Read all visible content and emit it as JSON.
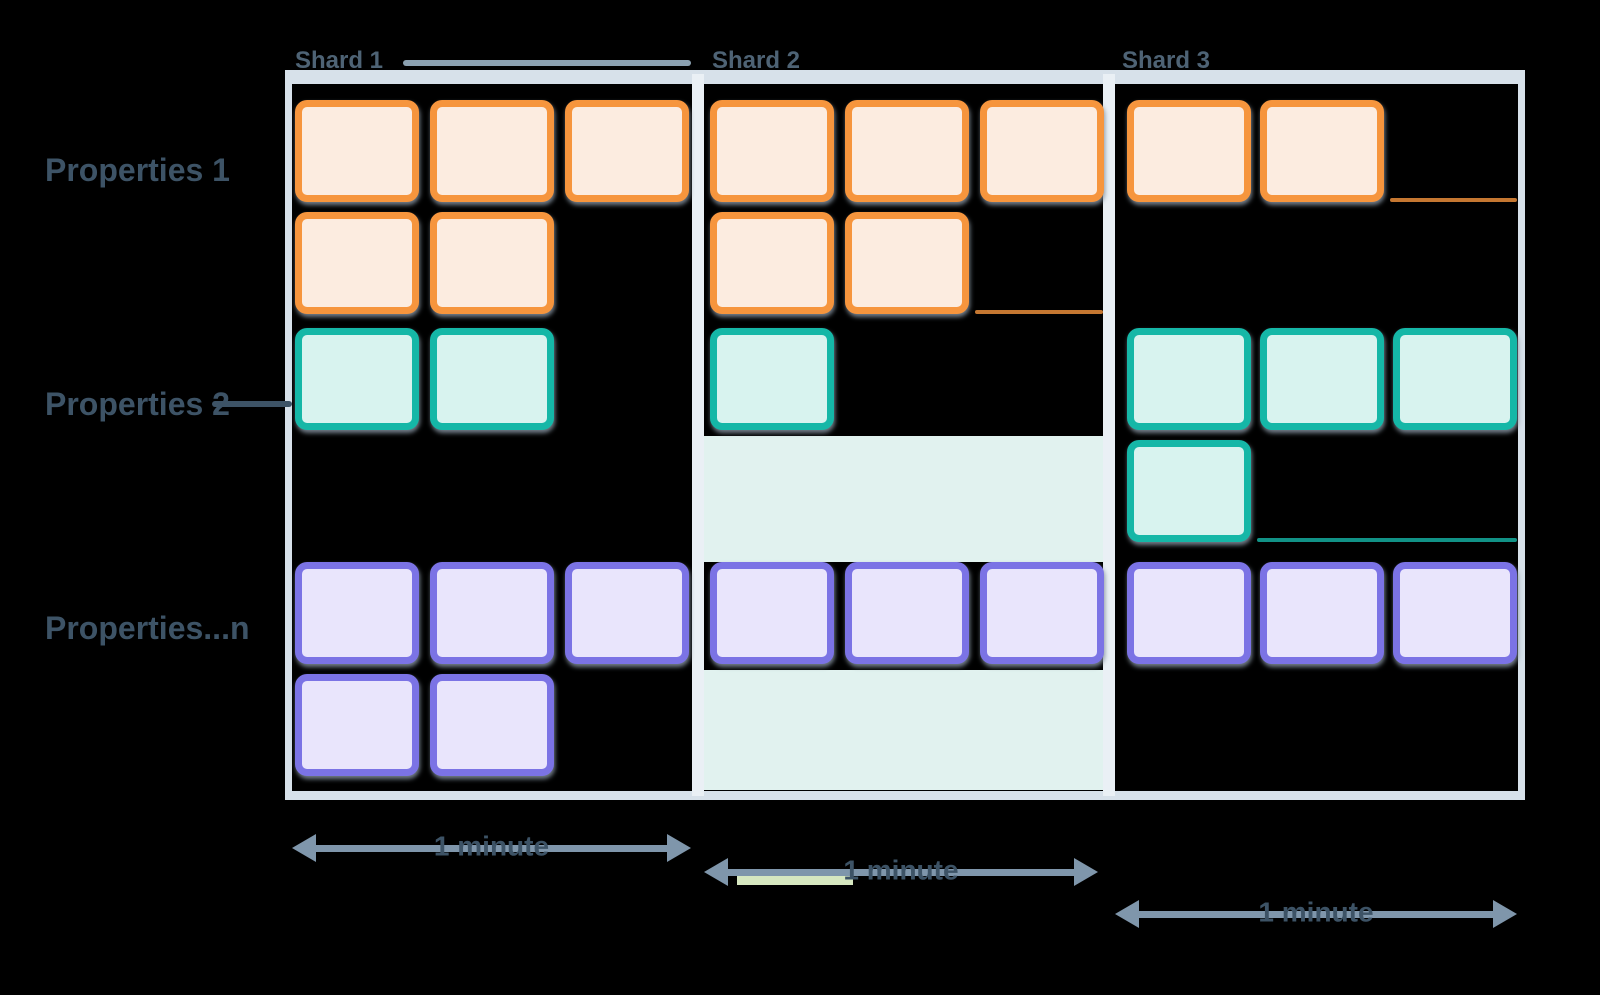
{
  "colors": {
    "background": "#000000",
    "frame": "#d7e1ea",
    "separator": "#eaf0f5",
    "orange_border": "#f6953d",
    "orange_fill": "#fcece0",
    "teal_border": "#15b7a7",
    "teal_fill": "#d8f3ef",
    "purple_border": "#7b73e5",
    "purple_fill": "#e9e5fc",
    "band_fill": "#e1f2ef",
    "label_text": "#3d5366",
    "header_text": "#4e6375",
    "arrow": "#7f96ab",
    "header_line": "#8ba1b1",
    "green_strip": "#d6e7c0"
  },
  "property_rows": [
    {
      "label": "Properties 1",
      "connector": false
    },
    {
      "label": "Properties 2",
      "connector": true
    },
    {
      "label": "Properties...n",
      "connector": false
    }
  ],
  "shards": [
    {
      "label": "Shard 1",
      "header_line": true,
      "rows": {
        "orange": [
          3,
          2
        ],
        "teal": [
          2
        ],
        "purple": [
          3,
          2
        ]
      },
      "trails": {},
      "bands": {},
      "arrow_label": "1 minute"
    },
    {
      "label": "Shard 2",
      "header_line": false,
      "rows": {
        "orange": [
          3,
          2
        ],
        "teal": [
          1
        ],
        "purple": [
          3
        ]
      },
      "trails": {
        "orange": 1
      },
      "bands": {
        "teal": true,
        "purple": true
      },
      "arrow_label": "1 minute",
      "green_strip": true
    },
    {
      "label": "Shard 3",
      "header_line": false,
      "rows": {
        "orange": [
          2
        ],
        "teal": [
          3,
          1
        ],
        "purple": [
          3
        ]
      },
      "trails": {
        "orange": 0,
        "teal": 1
      },
      "bands": {},
      "arrow_label": "1 minute"
    }
  ]
}
